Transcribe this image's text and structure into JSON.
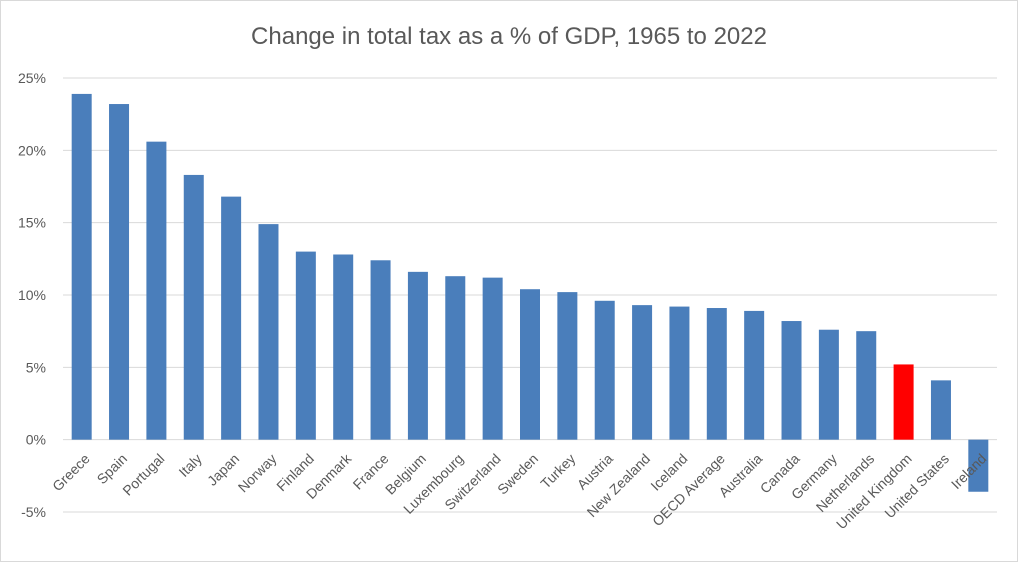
{
  "chart_data": {
    "type": "bar",
    "title": "Change in total tax as a % of GDP, 1965 to 2022",
    "xlabel": "",
    "ylabel": "",
    "ylim": [
      -5,
      25
    ],
    "yticks": [
      -5,
      0,
      5,
      10,
      15,
      20,
      25
    ],
    "ytick_labels": [
      "-5%",
      "0%",
      "5%",
      "10%",
      "15%",
      "20%",
      "25%"
    ],
    "grid": true,
    "legend": "none",
    "categories": [
      "Greece",
      "Spain",
      "Portugal",
      "Italy",
      "Japan",
      "Norway",
      "Finland",
      "Denmark",
      "France",
      "Belgium",
      "Luxembourg",
      "Switzerland",
      "Sweden",
      "Turkey",
      "Austria",
      "New Zealand",
      "Iceland",
      "OECD Average",
      "Australia",
      "Canada",
      "Germany",
      "Netherlands",
      "United Kingdom",
      "United States",
      "Ireland"
    ],
    "values": [
      23.9,
      23.2,
      20.6,
      18.3,
      16.8,
      14.9,
      13.0,
      12.8,
      12.4,
      11.6,
      11.3,
      11.2,
      10.4,
      10.2,
      9.6,
      9.3,
      9.2,
      9.1,
      8.9,
      8.2,
      7.6,
      7.5,
      5.2,
      4.1,
      -3.6
    ],
    "bar_color": "#4a7ebb",
    "highlight": {
      "category": "United Kingdom",
      "color": "#ff0000"
    }
  }
}
